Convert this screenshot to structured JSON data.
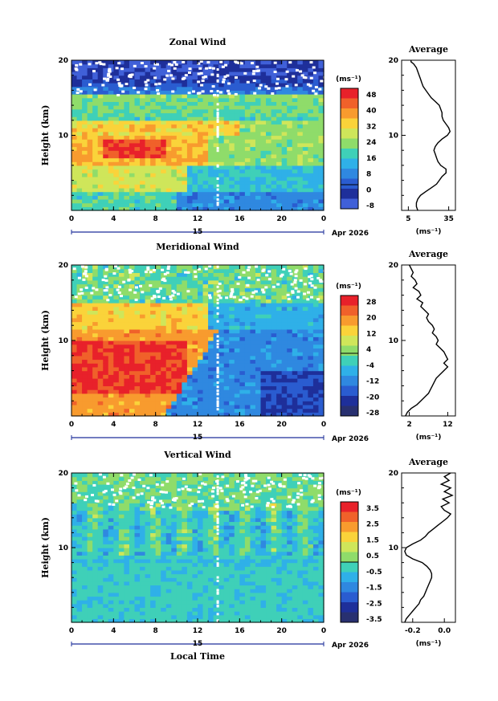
{
  "chart_data": [
    {
      "type": "heatmap",
      "title": "Zonal Wind",
      "ylabel": "Height (km)",
      "xticks": [
        "0",
        "4",
        "8",
        "12",
        "16",
        "20",
        "0"
      ],
      "yticks": [
        "20",
        "10"
      ],
      "ylim": [
        0,
        20
      ],
      "xlim": [
        0,
        24
      ],
      "date_day": "15",
      "date_label": "Apr 2026",
      "colorbar": {
        "unit": "(ms⁻¹)",
        "ticks": [
          "48",
          "40",
          "32",
          "24",
          "16",
          "8",
          "0",
          "-8"
        ],
        "colors": [
          "#e8212a",
          "#f0612a",
          "#f89b2e",
          "#fad33a",
          "#cfe65a",
          "#8fdc6a",
          "#3fd0b8",
          "#2fb0e8",
          "#2f88e0",
          "#2a5cd0",
          "#1e2f9a",
          "#4060d8"
        ]
      },
      "profile": {
        "title": "Average",
        "xticks": [
          "5",
          "35"
        ],
        "yticks": [
          "20",
          "10"
        ],
        "xunit": "(ms⁻¹)",
        "xlim": [
          0,
          40
        ],
        "x": [
          12,
          11,
          11,
          12,
          14,
          18,
          22,
          26,
          28,
          30,
          33,
          33,
          29,
          27,
          26,
          25,
          24,
          25,
          27,
          30,
          34,
          36,
          35,
          33,
          31,
          30,
          30,
          29,
          28,
          25,
          22,
          20,
          18,
          16,
          15,
          14,
          13,
          12,
          11,
          9,
          7,
          7
        ],
        "y": [
          0,
          0.5,
          1,
          1.5,
          2,
          2.5,
          3,
          3.5,
          4,
          4.5,
          5,
          5.5,
          6,
          6.5,
          7,
          7.5,
          8,
          8.5,
          9,
          9.5,
          10,
          10.5,
          11,
          11.5,
          12,
          12.5,
          13,
          13.5,
          14,
          14.5,
          15,
          15.5,
          16,
          16.5,
          17,
          17.5,
          18,
          18.5,
          19,
          19.5,
          19.8,
          20
        ]
      }
    },
    {
      "type": "heatmap",
      "title": "Meridional Wind",
      "ylabel": "Height (km)",
      "xticks": [
        "0",
        "4",
        "8",
        "12",
        "16",
        "20",
        "0"
      ],
      "yticks": [
        "20",
        "10"
      ],
      "ylim": [
        0,
        20
      ],
      "xlim": [
        0,
        24
      ],
      "date_day": "15",
      "date_label": "Apr 2026",
      "colorbar": {
        "unit": "(ms⁻¹)",
        "ticks": [
          "28",
          "20",
          "12",
          "4",
          "-4",
          "-12",
          "-20",
          "-28"
        ],
        "colors": [
          "#e8212a",
          "#f0612a",
          "#f89b2e",
          "#fad33a",
          "#cfe65a",
          "#8fdc6a",
          "#3fd0b8",
          "#2fb0e8",
          "#2f88e0",
          "#2a5cd0",
          "#1e2f9a",
          "#283070"
        ]
      },
      "profile": {
        "title": "Average",
        "xticks": [
          "2",
          "12"
        ],
        "yticks": [
          "20",
          "10"
        ],
        "xunit": "(ms⁻¹)",
        "xlim": [
          0,
          14
        ],
        "x": [
          1,
          1.5,
          2.5,
          4,
          5,
          6,
          7,
          7.5,
          8,
          8.5,
          9,
          10,
          11,
          12,
          11,
          12,
          11.5,
          11,
          10,
          9,
          9.5,
          9,
          8,
          8.5,
          8,
          7,
          6.5,
          7,
          6,
          5,
          5.5,
          4,
          5,
          4.5,
          3,
          4,
          3.5,
          2.5,
          3,
          2
        ],
        "y": [
          0,
          0.5,
          1,
          1.5,
          2,
          2.5,
          3,
          3.5,
          4,
          4.5,
          5,
          5.5,
          6,
          6.5,
          7,
          7.5,
          8,
          8.5,
          9,
          9.5,
          10,
          10.5,
          11,
          11.5,
          12,
          12.5,
          13,
          13.5,
          14,
          14.5,
          15,
          15.5,
          16,
          16.5,
          17,
          17.5,
          18,
          18.5,
          19,
          20
        ]
      }
    },
    {
      "type": "heatmap",
      "title": "Vertical Wind",
      "ylabel": "Height (km)",
      "xlabel": "Local Time",
      "xticks": [
        "0",
        "4",
        "8",
        "12",
        "16",
        "20",
        "0"
      ],
      "yticks": [
        "20",
        "10"
      ],
      "ylim": [
        0,
        20
      ],
      "xlim": [
        0,
        24
      ],
      "date_day": "15",
      "date_label": "Apr 2026",
      "colorbar": {
        "unit": "(ms⁻¹)",
        "ticks": [
          "3.5",
          "2.5",
          "1.5",
          "0.5",
          "-0.5",
          "-1.5",
          "-2.5",
          "-3.5"
        ],
        "colors": [
          "#e8212a",
          "#f0612a",
          "#f89b2e",
          "#fad33a",
          "#cfe65a",
          "#8fdc6a",
          "#3fd0b8",
          "#2fb0e8",
          "#2f88e0",
          "#2a5cd0",
          "#1e2f9a",
          "#283070"
        ]
      },
      "profile": {
        "title": "Average",
        "xticks": [
          "-0.2",
          "0.0"
        ],
        "yticks": [
          "20",
          "10"
        ],
        "xunit": "(ms⁻¹)",
        "xlim": [
          -0.27,
          0.07
        ],
        "x": [
          -0.25,
          -0.24,
          -0.22,
          -0.2,
          -0.18,
          -0.16,
          -0.15,
          -0.13,
          -0.12,
          -0.11,
          -0.1,
          -0.09,
          -0.08,
          -0.08,
          -0.09,
          -0.11,
          -0.14,
          -0.2,
          -0.24,
          -0.25,
          -0.24,
          -0.2,
          -0.15,
          -0.12,
          -0.1,
          -0.07,
          -0.04,
          -0.01,
          0.02,
          0.04,
          0.0,
          -0.02,
          0.03,
          -0.01,
          0.05,
          0.0,
          0.04,
          -0.02,
          0.03,
          0.0,
          0.04
        ],
        "y": [
          0,
          0.5,
          1,
          1.5,
          2,
          2.5,
          3,
          3.5,
          4,
          4.5,
          5,
          5.5,
          6,
          6.5,
          7,
          7.5,
          8,
          8.5,
          9,
          9.5,
          10,
          10.5,
          11,
          11.5,
          12,
          12.5,
          13,
          13.5,
          14,
          14.5,
          15,
          15.5,
          16,
          16.5,
          17,
          17.5,
          18,
          18.5,
          19,
          19.5,
          20
        ]
      }
    }
  ]
}
